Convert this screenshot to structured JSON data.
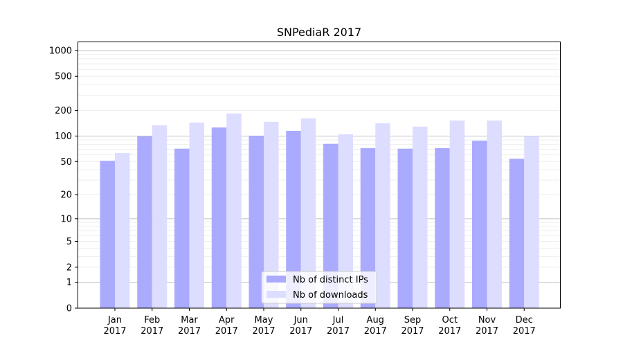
{
  "chart_data": {
    "type": "bar",
    "title": "SNPediaR 2017",
    "xlabel": "",
    "ylabel": "",
    "yscale": "symlog (log10(1+y))",
    "ylim": [
      0,
      1300
    ],
    "yticks": [
      0,
      1,
      2,
      5,
      10,
      20,
      50,
      100,
      200,
      500,
      1000
    ],
    "grid": true,
    "legend_position": "bottom-center",
    "categories": [
      "Jan\n2017",
      "Feb\n2017",
      "Mar\n2017",
      "Apr\n2017",
      "May\n2017",
      "Jun\n2017",
      "Jul\n2017",
      "Aug\n2017",
      "Sep\n2017",
      "Oct\n2017",
      "Nov\n2017",
      "Dec\n2017"
    ],
    "series": [
      {
        "name": "Nb of distinct IPs",
        "color": "#aaaaff",
        "values": [
          51,
          99,
          71,
          126,
          101,
          115,
          81,
          72,
          71,
          72,
          88,
          54
        ]
      },
      {
        "name": "Nb of downloads",
        "color": "#ddddff",
        "values": [
          63,
          134,
          144,
          184,
          147,
          161,
          105,
          141,
          129,
          152,
          152,
          100
        ]
      }
    ]
  }
}
